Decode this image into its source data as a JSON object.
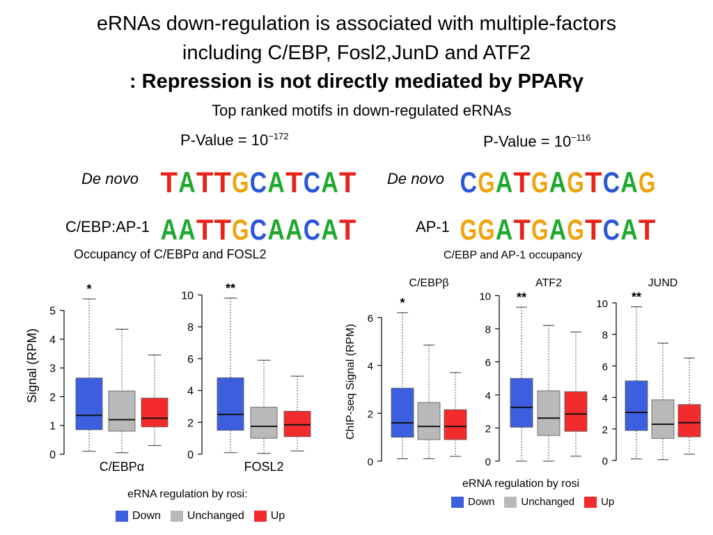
{
  "slide": {
    "title_line1": "eRNAs down-regulation is associated with multiple-factors",
    "title_line2": "including C/EBP, Fosl2,JunD and ATF2",
    "title_line3": ": Repression is not directly mediated by PPARγ",
    "motif_heading": "Top ranked motifs in down-regulated eRNAs"
  },
  "motifs": {
    "left": {
      "pvalue_prefix": "P-Value = 10",
      "pvalue_exp": "−172",
      "row1_label": "De novo",
      "row1_seq": [
        "T",
        "A",
        "T",
        "T",
        "G",
        "C",
        "A",
        "T",
        "C",
        "A",
        "T"
      ],
      "row2_label": "C/EBP:AP-1",
      "row2_seq": [
        "A",
        "A",
        "T",
        "T",
        "G",
        "C",
        "A",
        "A",
        "C",
        "A",
        "T"
      ]
    },
    "right": {
      "pvalue_prefix": "P-Value = 10",
      "pvalue_exp": "−116",
      "row1_label": "De novo",
      "row1_seq": [
        "C",
        "G",
        "A",
        "T",
        "G",
        "A",
        "G",
        "T",
        "C",
        "A",
        "G"
      ],
      "row2_label": "AP-1",
      "row2_seq": [
        "G",
        "G",
        "A",
        "T",
        "G",
        "A",
        "G",
        "T",
        "C",
        "A",
        "T"
      ]
    },
    "base_colors": {
      "A": "#1fa82d",
      "C": "#2a56d8",
      "G": "#f0a30a",
      "T": "#e8231b"
    }
  },
  "colors": {
    "down": "#3c5fe0",
    "unchanged": "#b9b9b9",
    "up": "#f22c2c"
  },
  "left_panel": {
    "subtitle_prefix": "Occupancy of C/EBP",
    "subtitle_greek": "α",
    "subtitle_suffix": " and FOSL2",
    "ylabel": "Signal (RPM)",
    "legend_title": "eRNA regulation by rosi:"
  },
  "right_panel": {
    "subtitle": "C/EBP and AP-1 occupancy",
    "ylabel": "ChIP-seq Signal (RPM)",
    "legend_title": "eRNA regulation by rosi"
  },
  "legend_items": [
    "Down",
    "Unchanged",
    "Up"
  ],
  "chart_data": [
    {
      "type": "box",
      "xlabel": "C/EBPα",
      "title": "",
      "ylim": [
        0,
        5.5
      ],
      "ticks": [
        0,
        1,
        2,
        3,
        4,
        5
      ],
      "significance": "*",
      "categories": [
        "Down",
        "Unchanged",
        "Up"
      ],
      "series": [
        {
          "name": "Down",
          "whisker_low": 0.1,
          "q1": 0.85,
          "median": 1.35,
          "q3": 2.65,
          "whisker_high": 5.4
        },
        {
          "name": "Unchanged",
          "whisker_low": 0.05,
          "q1": 0.8,
          "median": 1.2,
          "q3": 2.2,
          "whisker_high": 4.35
        },
        {
          "name": "Up",
          "whisker_low": 0.3,
          "q1": 0.95,
          "median": 1.25,
          "q3": 1.95,
          "whisker_high": 3.45
        }
      ]
    },
    {
      "type": "box",
      "xlabel": "FOSL2",
      "title": "",
      "ylim": [
        0,
        10.5
      ],
      "ticks": [
        0,
        2,
        4,
        6,
        8,
        10
      ],
      "significance": "**",
      "categories": [
        "Down",
        "Unchanged",
        "Up"
      ],
      "series": [
        {
          "name": "Down",
          "whisker_low": 0.1,
          "q1": 1.5,
          "median": 2.5,
          "q3": 4.8,
          "whisker_high": 9.8
        },
        {
          "name": "Unchanged",
          "whisker_low": 0.05,
          "q1": 1.0,
          "median": 1.75,
          "q3": 2.95,
          "whisker_high": 5.9
        },
        {
          "name": "Up",
          "whisker_low": 0.2,
          "q1": 1.1,
          "median": 1.85,
          "q3": 2.7,
          "whisker_high": 4.9
        }
      ]
    },
    {
      "type": "box",
      "title": "C/EBPβ",
      "xlabel": "",
      "ylim": [
        0,
        6.4
      ],
      "ticks": [
        0,
        2,
        4,
        6
      ],
      "significance": "*",
      "categories": [
        "Down",
        "Unchanged",
        "Up"
      ],
      "series": [
        {
          "name": "Down",
          "whisker_low": 0.1,
          "q1": 1.0,
          "median": 1.6,
          "q3": 3.05,
          "whisker_high": 6.2
        },
        {
          "name": "Unchanged",
          "whisker_low": 0.1,
          "q1": 0.9,
          "median": 1.45,
          "q3": 2.45,
          "whisker_high": 4.85
        },
        {
          "name": "Up",
          "whisker_low": 0.2,
          "q1": 0.9,
          "median": 1.45,
          "q3": 2.15,
          "whisker_high": 3.7
        }
      ]
    },
    {
      "type": "box",
      "title": "ATF2",
      "xlabel": "",
      "ylim": [
        0,
        10.1
      ],
      "ticks": [
        0,
        2,
        4,
        6,
        8,
        10
      ],
      "significance": "**",
      "categories": [
        "Down",
        "Unchanged",
        "Up"
      ],
      "series": [
        {
          "name": "Down",
          "whisker_low": 0.0,
          "q1": 2.05,
          "median": 3.25,
          "q3": 5.0,
          "whisker_high": 9.3
        },
        {
          "name": "Unchanged",
          "whisker_low": 0.0,
          "q1": 1.55,
          "median": 2.6,
          "q3": 4.25,
          "whisker_high": 8.2
        },
        {
          "name": "Up",
          "whisker_low": 0.3,
          "q1": 1.8,
          "median": 2.85,
          "q3": 4.2,
          "whisker_high": 7.8
        }
      ]
    },
    {
      "type": "box",
      "title": "JUND",
      "xlabel": "",
      "ylim": [
        0,
        10.3
      ],
      "ticks": [
        0,
        2,
        4,
        6,
        8,
        10
      ],
      "significance": "**",
      "categories": [
        "Down",
        "Unchanged",
        "Up"
      ],
      "series": [
        {
          "name": "Down",
          "whisker_low": 0.1,
          "q1": 1.9,
          "median": 3.05,
          "q3": 5.05,
          "whisker_high": 9.75
        },
        {
          "name": "Unchanged",
          "whisker_low": 0.05,
          "q1": 1.4,
          "median": 2.3,
          "q3": 3.85,
          "whisker_high": 7.45
        },
        {
          "name": "Up",
          "whisker_low": 0.4,
          "q1": 1.5,
          "median": 2.4,
          "q3": 3.55,
          "whisker_high": 6.5
        }
      ]
    }
  ]
}
